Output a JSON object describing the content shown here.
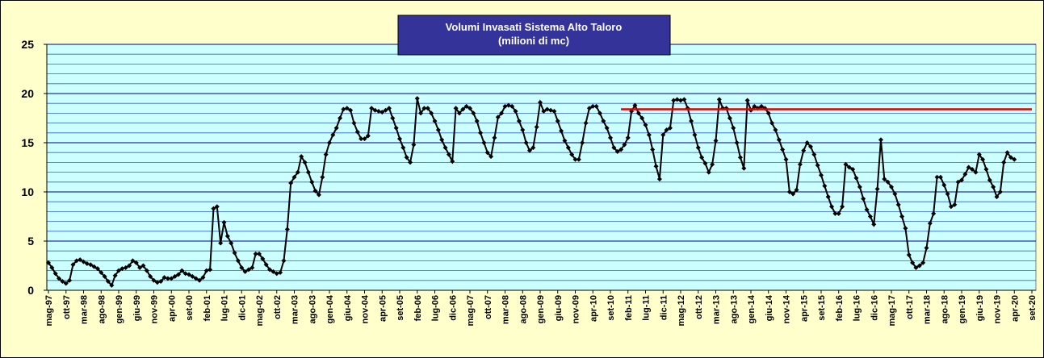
{
  "chart_data": {
    "type": "line",
    "title": "Volumi Invasati Sistema Alto Taloro",
    "subtitle": "(milioni di mc)",
    "categories": [
      "mag-97",
      null,
      null,
      null,
      null,
      "ott-97",
      null,
      null,
      null,
      null,
      "mar-98",
      null,
      null,
      null,
      null,
      "ago-98",
      null,
      null,
      null,
      null,
      "gen-99",
      null,
      null,
      null,
      null,
      "giu-99",
      null,
      null,
      null,
      null,
      "nov-99",
      null,
      null,
      null,
      null,
      "apr-00",
      null,
      null,
      null,
      null,
      "set-00",
      null,
      null,
      null,
      null,
      "feb-01",
      null,
      null,
      null,
      null,
      "lug-01",
      null,
      null,
      null,
      null,
      "dic-01",
      null,
      null,
      null,
      null,
      "mag-02",
      null,
      null,
      null,
      null,
      "ott-02",
      null,
      null,
      null,
      null,
      "mar-03",
      null,
      null,
      null,
      null,
      "ago-03",
      null,
      null,
      null,
      null,
      "gen-04",
      null,
      null,
      null,
      null,
      "giu-04",
      null,
      null,
      null,
      null,
      "nov-04",
      null,
      null,
      null,
      null,
      "apr-05",
      null,
      null,
      null,
      null,
      "set-05",
      null,
      null,
      null,
      null,
      "feb-06",
      null,
      null,
      null,
      null,
      "lug-06",
      null,
      null,
      null,
      null,
      "dic-06",
      null,
      null,
      null,
      null,
      "mag-07",
      null,
      null,
      null,
      null,
      "ott-07",
      null,
      null,
      null,
      null,
      "mar-08",
      null,
      null,
      null,
      null,
      "ago-08",
      null,
      null,
      null,
      null,
      "gen-09",
      null,
      null,
      null,
      null,
      "giu-09",
      null,
      null,
      null,
      null,
      "nov-09",
      null,
      null,
      null,
      null,
      "apr-10",
      null,
      null,
      null,
      null,
      "set-10",
      null,
      null,
      null,
      null,
      "feb-11",
      null,
      null,
      null,
      null,
      "lug-11",
      null,
      null,
      null,
      null,
      "dic-11",
      null,
      null,
      null,
      null,
      "mag-12",
      null,
      null,
      null,
      null,
      "ott-12",
      null,
      null,
      null,
      null,
      "mar-13",
      null,
      null,
      null,
      null,
      "ago-13",
      null,
      null,
      null,
      null,
      "gen-14",
      null,
      null,
      null,
      null,
      "giu-14",
      null,
      null,
      null,
      null,
      "nov-14",
      null,
      null,
      null,
      null,
      "apr-15",
      null,
      null,
      null,
      null,
      "set-15",
      null,
      null,
      null,
      null,
      "feb-16",
      null,
      null,
      null,
      null,
      "lug-16",
      null,
      null,
      null,
      null,
      "dic-16",
      null,
      null,
      null,
      null,
      "mag-17",
      null,
      null,
      null,
      null,
      "ott-17",
      null,
      null,
      null,
      null,
      "mar-18",
      null,
      null,
      null,
      null,
      "ago-18",
      null,
      null,
      null,
      null,
      "gen-19",
      null,
      null,
      null,
      null,
      "giu-19",
      null,
      null,
      null,
      null,
      "nov-19",
      null,
      null,
      null,
      null,
      "apr-20",
      null,
      null,
      null,
      null,
      "set-20"
    ],
    "series": [
      {
        "color": "#000000",
        "values": [
          2.8,
          2.3,
          1.7,
          1.2,
          0.9,
          0.7,
          1.0,
          2.6,
          3.0,
          3.1,
          2.9,
          2.7,
          2.6,
          2.4,
          2.2,
          1.8,
          1.4,
          0.9,
          0.5,
          1.5,
          2.0,
          2.2,
          2.3,
          2.5,
          3.0,
          2.8,
          2.3,
          2.5,
          2.0,
          1.4,
          1.0,
          0.8,
          0.9,
          1.3,
          1.2,
          1.2,
          1.4,
          1.6,
          2.0,
          1.7,
          1.6,
          1.4,
          1.2,
          1.0,
          1.3,
          2.0,
          2.1,
          8.3,
          8.5,
          4.8,
          6.9,
          5.5,
          4.8,
          3.8,
          3.0,
          2.3,
          1.9,
          2.1,
          2.3,
          3.7,
          3.7,
          3.2,
          2.6,
          2.1,
          1.9,
          1.7,
          1.8,
          3.0,
          6.2,
          10.9,
          11.5,
          12.0,
          13.6,
          13.0,
          12.0,
          11.0,
          10.1,
          9.7,
          11.5,
          13.8,
          15.0,
          15.8,
          16.5,
          17.5,
          18.4,
          18.5,
          18.3,
          17.0,
          16.1,
          15.4,
          15.4,
          15.7,
          18.5,
          18.3,
          18.2,
          18.1,
          18.3,
          18.5,
          17.5,
          16.5,
          15.4,
          14.5,
          13.5,
          13.0,
          14.8,
          19.5,
          18.0,
          18.5,
          18.5,
          18.0,
          17.2,
          16.3,
          15.3,
          14.5,
          13.8,
          13.1,
          18.5,
          18.0,
          18.4,
          18.7,
          18.5,
          18.0,
          17.2,
          16.0,
          15.0,
          14.0,
          13.6,
          15.5,
          17.6,
          18.0,
          18.7,
          18.8,
          18.7,
          18.2,
          17.2,
          16.3,
          15.0,
          14.2,
          14.5,
          16.6,
          19.1,
          18.2,
          18.4,
          18.3,
          18.2,
          17.2,
          16.2,
          15.2,
          14.5,
          13.8,
          13.3,
          13.3,
          15.0,
          17.0,
          18.5,
          18.7,
          18.7,
          18.0,
          17.2,
          16.5,
          15.5,
          14.5,
          14.1,
          14.3,
          14.8,
          15.5,
          18.2,
          18.8,
          18.0,
          17.5,
          16.8,
          15.8,
          14.3,
          12.6,
          11.3,
          15.8,
          16.3,
          16.5,
          19.3,
          19.4,
          19.3,
          19.4,
          18.5,
          17.2,
          15.8,
          14.5,
          13.5,
          12.9,
          12.0,
          12.8,
          15.2,
          19.4,
          18.5,
          18.5,
          17.5,
          16.5,
          15.0,
          13.5,
          12.4,
          19.3,
          18.3,
          18.7,
          18.5,
          18.7,
          18.5,
          18.0,
          17.0,
          16.3,
          15.3,
          14.3,
          13.3,
          10.0,
          9.8,
          10.2,
          12.8,
          14.2,
          15.0,
          14.6,
          13.8,
          12.7,
          11.7,
          10.6,
          9.5,
          8.5,
          7.8,
          7.8,
          8.5,
          12.8,
          12.5,
          12.3,
          11.4,
          10.5,
          9.3,
          8.2,
          7.5,
          6.7,
          10.3,
          15.3,
          11.3,
          11.0,
          10.5,
          9.8,
          8.7,
          7.5,
          6.3,
          3.6,
          2.8,
          2.3,
          2.5,
          2.8,
          4.3,
          6.8,
          7.8,
          11.5,
          11.5,
          10.7,
          9.8,
          8.5,
          8.7,
          11.0,
          11.2,
          11.8,
          12.5,
          12.3,
          12.0,
          13.8,
          13.3,
          12.3,
          11.2,
          10.5,
          9.5,
          10.0,
          13.0,
          14.0,
          13.5,
          13.3,
          null,
          null,
          null,
          null,
          null
        ]
      },
      {
        "color": "#e00000",
        "values": [
          null,
          null,
          null,
          null,
          null,
          null,
          null,
          null,
          null,
          null,
          null,
          null,
          null,
          null,
          null,
          null,
          null,
          null,
          null,
          null,
          null,
          null,
          null,
          null,
          null,
          null,
          null,
          null,
          null,
          null,
          null,
          null,
          null,
          null,
          null,
          null,
          null,
          null,
          null,
          null,
          null,
          null,
          null,
          null,
          null,
          null,
          null,
          null,
          null,
          null,
          null,
          null,
          null,
          null,
          null,
          null,
          null,
          null,
          null,
          null,
          null,
          null,
          null,
          null,
          null,
          null,
          null,
          null,
          null,
          null,
          null,
          null,
          null,
          null,
          null,
          null,
          null,
          null,
          null,
          null,
          null,
          null,
          null,
          null,
          null,
          null,
          null,
          null,
          null,
          null,
          null,
          null,
          null,
          null,
          null,
          null,
          null,
          null,
          null,
          null,
          null,
          null,
          null,
          null,
          null,
          null,
          null,
          null,
          null,
          null,
          null,
          null,
          null,
          null,
          null,
          null,
          null,
          null,
          null,
          null,
          null,
          null,
          null,
          null,
          null,
          null,
          null,
          null,
          null,
          null,
          null,
          null,
          null,
          null,
          null,
          null,
          null,
          null,
          null,
          null,
          null,
          null,
          null,
          null,
          null,
          null,
          null,
          null,
          null,
          null,
          null,
          null,
          null,
          null,
          null,
          null,
          null,
          null,
          null,
          null,
          null,
          null,
          null,
          18.4,
          18.4,
          18.4,
          18.4,
          18.4,
          18.4,
          18.4,
          18.4,
          18.4,
          18.4,
          18.4,
          18.4,
          18.4,
          18.4,
          18.4,
          18.4,
          18.4,
          18.4,
          18.4,
          18.4,
          18.4,
          18.4,
          18.4,
          18.4,
          18.4,
          18.4,
          18.4,
          18.4,
          18.4,
          18.4,
          18.4,
          18.4,
          18.4,
          18.4,
          18.4,
          18.4,
          18.4,
          18.4,
          18.4,
          18.4,
          18.4,
          18.4,
          18.4,
          18.4,
          18.4,
          18.4,
          18.4,
          18.4,
          18.4,
          18.4,
          18.4,
          18.4,
          18.4,
          18.4,
          18.4,
          18.4,
          18.4,
          18.4,
          18.4,
          18.4,
          18.4,
          18.4,
          18.4,
          18.4,
          18.4,
          18.4,
          18.4,
          18.4,
          18.4,
          18.4,
          18.4,
          18.4,
          18.4,
          18.4,
          18.4,
          18.4,
          18.4,
          18.4,
          18.4,
          18.4,
          18.4,
          18.4,
          18.4,
          18.4,
          18.4,
          18.4,
          18.4,
          18.4,
          18.4,
          18.4,
          18.4,
          18.4,
          18.4,
          18.4,
          18.4,
          18.4,
          18.4,
          18.4,
          18.4,
          18.4,
          18.4,
          18.4,
          18.4,
          18.4,
          18.4,
          18.4,
          18.4,
          18.4,
          18.4,
          18.4,
          18.4,
          18.4,
          18.4,
          18.4,
          18.4,
          18.4,
          18.4,
          18.4
        ]
      }
    ],
    "ylim": [
      0,
      25
    ],
    "yticks": [
      0,
      5,
      10,
      15,
      20,
      25
    ],
    "minor_yticks": [
      1,
      2,
      3,
      4,
      6,
      7,
      8,
      9,
      11,
      12,
      13,
      14,
      16,
      17,
      18,
      19,
      21,
      22,
      23,
      24
    ],
    "grid": true
  }
}
